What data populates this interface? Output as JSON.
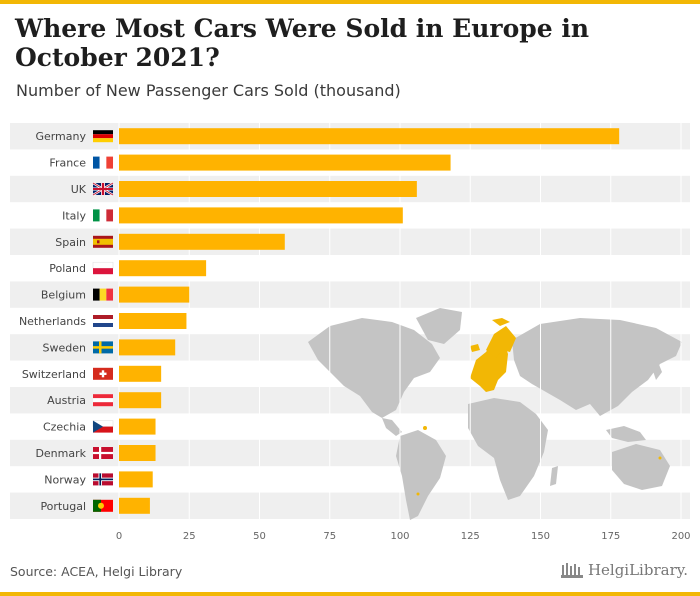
{
  "title": "Where Most Cars Were Sold in Europe in October 2021?",
  "subtitle": "Number of New Passenger Cars Sold (thousand)",
  "source": "Source: ACEA, Helgi Library",
  "brand": "HelgiLibrary.",
  "colors": {
    "accent": "#f2b705",
    "bar": "#ffb300",
    "row_band": "#efefef",
    "map_land": "#c4c4c4",
    "map_highlight": "#f2b705"
  },
  "chart_data": {
    "type": "bar",
    "orientation": "horizontal",
    "categories": [
      "Germany",
      "France",
      "UK",
      "Italy",
      "Spain",
      "Poland",
      "Belgium",
      "Netherlands",
      "Sweden",
      "Switzerland",
      "Austria",
      "Czechia",
      "Denmark",
      "Norway",
      "Portugal"
    ],
    "values": [
      178,
      118,
      106,
      101,
      59,
      31,
      25,
      24,
      20,
      15,
      15,
      13,
      13,
      12,
      11
    ],
    "flags": [
      "flag-germany",
      "flag-france",
      "flag-uk",
      "flag-italy",
      "flag-spain",
      "flag-poland",
      "flag-belgium",
      "flag-netherlands",
      "flag-sweden",
      "flag-switzerland",
      "flag-austria",
      "flag-czechia",
      "flag-denmark",
      "flag-norway",
      "flag-portugal"
    ],
    "xlim": [
      0,
      200
    ],
    "xticks": [
      0,
      25,
      50,
      75,
      100,
      125,
      150,
      175,
      200
    ],
    "grid": "vertical",
    "legend": "none",
    "background_image": "world-map-europe-highlighted"
  }
}
